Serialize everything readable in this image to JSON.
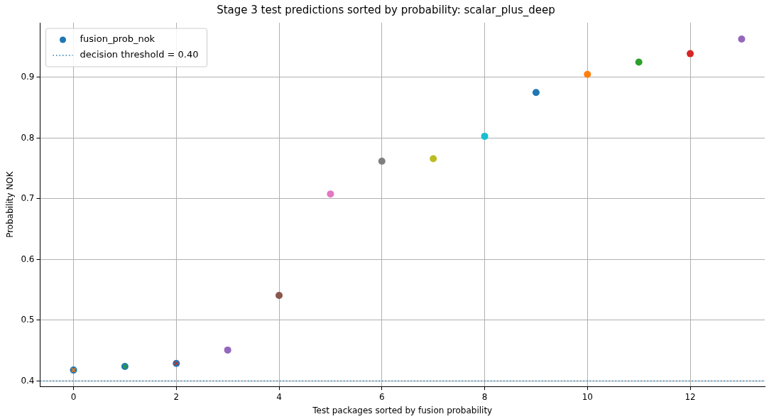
{
  "chart_data": {
    "type": "scatter",
    "title": "Stage 3 test predictions sorted by probability: scalar_plus_deep",
    "xlabel": "Test packages sorted by fusion probability",
    "ylabel": "Probability NOK",
    "x": [
      0,
      1,
      2,
      3,
      4,
      5,
      6,
      7,
      8,
      9,
      10,
      11,
      12,
      13
    ],
    "series": [
      {
        "name": "fusion_prob_nok",
        "color": "#1f77b4",
        "marker": "circle",
        "values": [
          0.418,
          0.424,
          0.429,
          0.451,
          0.541,
          0.708,
          0.762,
          0.766,
          0.803,
          0.875,
          0.905,
          0.925,
          0.939,
          0.963
        ],
        "colors": [
          "#1f77b4",
          "#1f77b4",
          "#1f77b4",
          "#9467bd",
          "#8c564b",
          "#e377c2",
          "#7f7f7f",
          "#bcbd22",
          "#17becf",
          "#1f77b4",
          "#ff7f0e",
          "#2ca02c",
          "#d62728",
          "#9467bd"
        ]
      },
      {
        "marker": "cross",
        "values": [
          0.418,
          0.424,
          0.429,
          null,
          null,
          null,
          null,
          null,
          null,
          null,
          null,
          null,
          null,
          null
        ],
        "colors": [
          "#ff7f0e",
          "#2ca02c",
          "#d62728",
          null,
          null,
          null,
          null,
          null,
          null,
          null,
          null,
          null,
          null,
          null
        ]
      }
    ],
    "xlim": [
      -0.65,
      13.45
    ],
    "xticks": [
      0,
      2,
      4,
      6,
      8,
      10,
      12
    ],
    "ylim": [
      0.391,
      0.99
    ],
    "yticks": [
      {
        "value": 0.4,
        "label": "0.4"
      },
      {
        "value": 0.5,
        "label": "0.5"
      },
      {
        "value": 0.6,
        "label": "0.6"
      },
      {
        "value": 0.7,
        "label": "0.7"
      },
      {
        "value": 0.8,
        "label": "0.8"
      },
      {
        "value": 0.9,
        "label": "0.9"
      }
    ],
    "ref_lines": [
      {
        "axis": "y",
        "value": 0.4,
        "label": "decision threshold = 0.40",
        "color": "#1f77b4",
        "line_style": "dotted"
      }
    ],
    "grid": true,
    "legend": "top left"
  }
}
